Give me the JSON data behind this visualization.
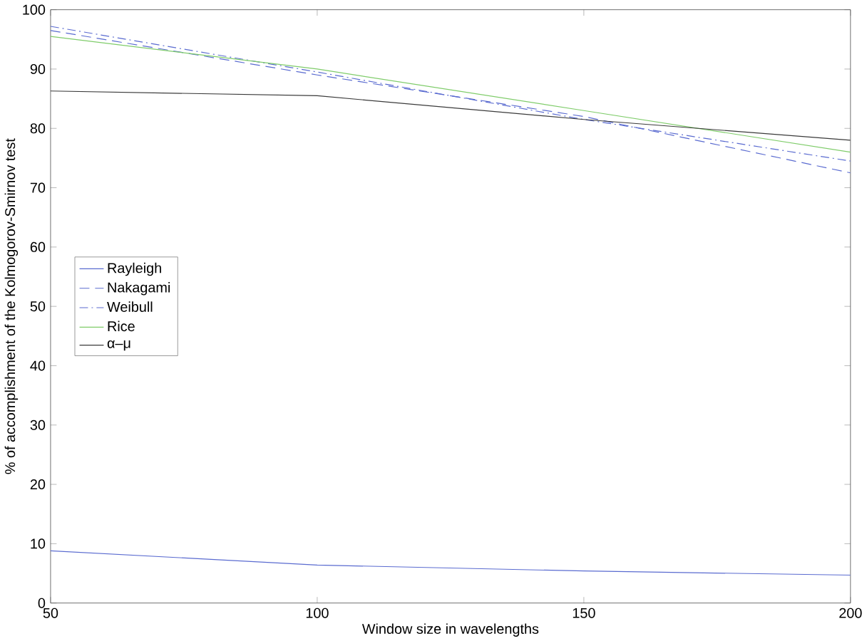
{
  "chart_data": {
    "type": "line",
    "xlabel": "Window size in wavelengths",
    "ylabel": "% of accomplishment of the Kolmogorov-Smirnov test",
    "x": [
      50,
      100,
      150,
      200
    ],
    "xlim": [
      50,
      200
    ],
    "ylim": [
      0,
      100
    ],
    "xticks": [
      50,
      100,
      150,
      200
    ],
    "yticks": [
      0,
      10,
      20,
      30,
      40,
      50,
      60,
      70,
      80,
      90,
      100
    ],
    "legend": "left",
    "grid": false,
    "marker": "none",
    "series": [
      {
        "name": "Rayleigh",
        "color": "#5a6bd0",
        "line_style": "solid",
        "values": [
          8.8,
          6.4,
          5.4,
          4.7
        ]
      },
      {
        "name": "Nakagami",
        "color": "#5a6bd0",
        "line_style": "dashed",
        "values": [
          96.5,
          89,
          82,
          72.5
        ]
      },
      {
        "name": "Weibull",
        "color": "#5a6bd0",
        "line_style": "dashdot",
        "values": [
          97.2,
          89.5,
          81.5,
          74.5
        ]
      },
      {
        "name": "Rice",
        "color": "#7fcc6a",
        "line_style": "solid",
        "values": [
          95.5,
          90,
          83,
          76
        ]
      },
      {
        "name": "α–μ",
        "color": "#3a3a3a",
        "line_style": "solid",
        "values": [
          86.3,
          85.5,
          81.5,
          78
        ]
      }
    ]
  }
}
